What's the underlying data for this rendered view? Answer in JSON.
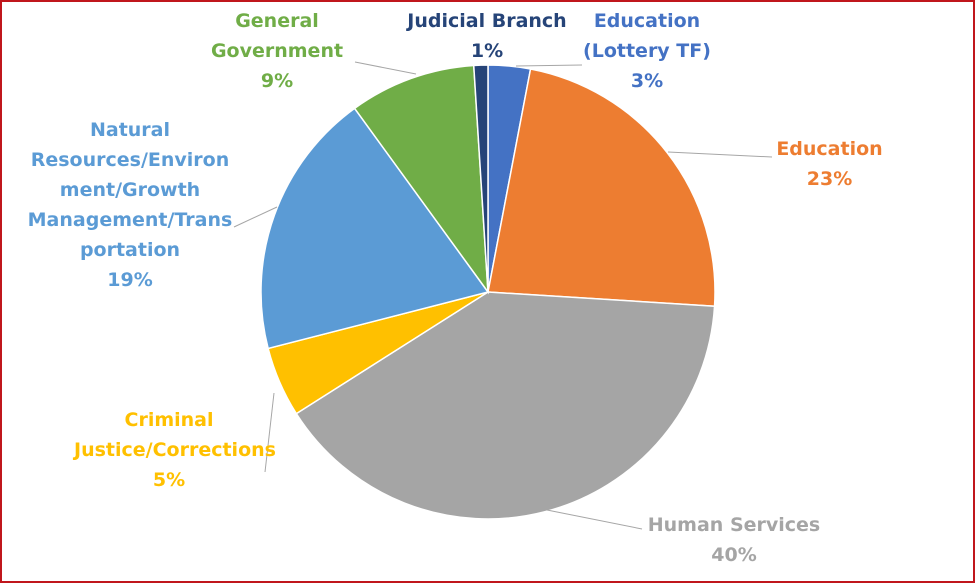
{
  "chart_data": {
    "type": "pie",
    "title": "",
    "slices": [
      {
        "label_lines": [
          "Education",
          "(Lottery TF)"
        ],
        "pct_label": "3%",
        "value": 3,
        "color": "#4472c4"
      },
      {
        "label_lines": [
          "Education"
        ],
        "pct_label": "23%",
        "value": 23,
        "color": "#ed7d31"
      },
      {
        "label_lines": [
          "Human Services"
        ],
        "pct_label": "40%",
        "value": 40,
        "color": "#a5a5a5"
      },
      {
        "label_lines": [
          "Criminal",
          "Justice/Corrections"
        ],
        "pct_label": "5%",
        "value": 5,
        "color": "#ffc000"
      },
      {
        "label_lines": [
          "Natural",
          "Resources/Environ",
          "ment/Growth",
          "Management/Trans",
          "portation"
        ],
        "pct_label": "19%",
        "value": 19,
        "color": "#5b9bd5"
      },
      {
        "label_lines": [
          "General",
          "Government"
        ],
        "pct_label": "9%",
        "value": 9,
        "color": "#70ad47"
      },
      {
        "label_lines": [
          "Judicial Branch"
        ],
        "pct_label": "1%",
        "value": 1,
        "color": "#264478"
      }
    ],
    "start_angle_deg": 0,
    "direction": "clockwise",
    "legend": "none",
    "leader_color": "#a6a6a6",
    "border_color": "#c0161c"
  }
}
